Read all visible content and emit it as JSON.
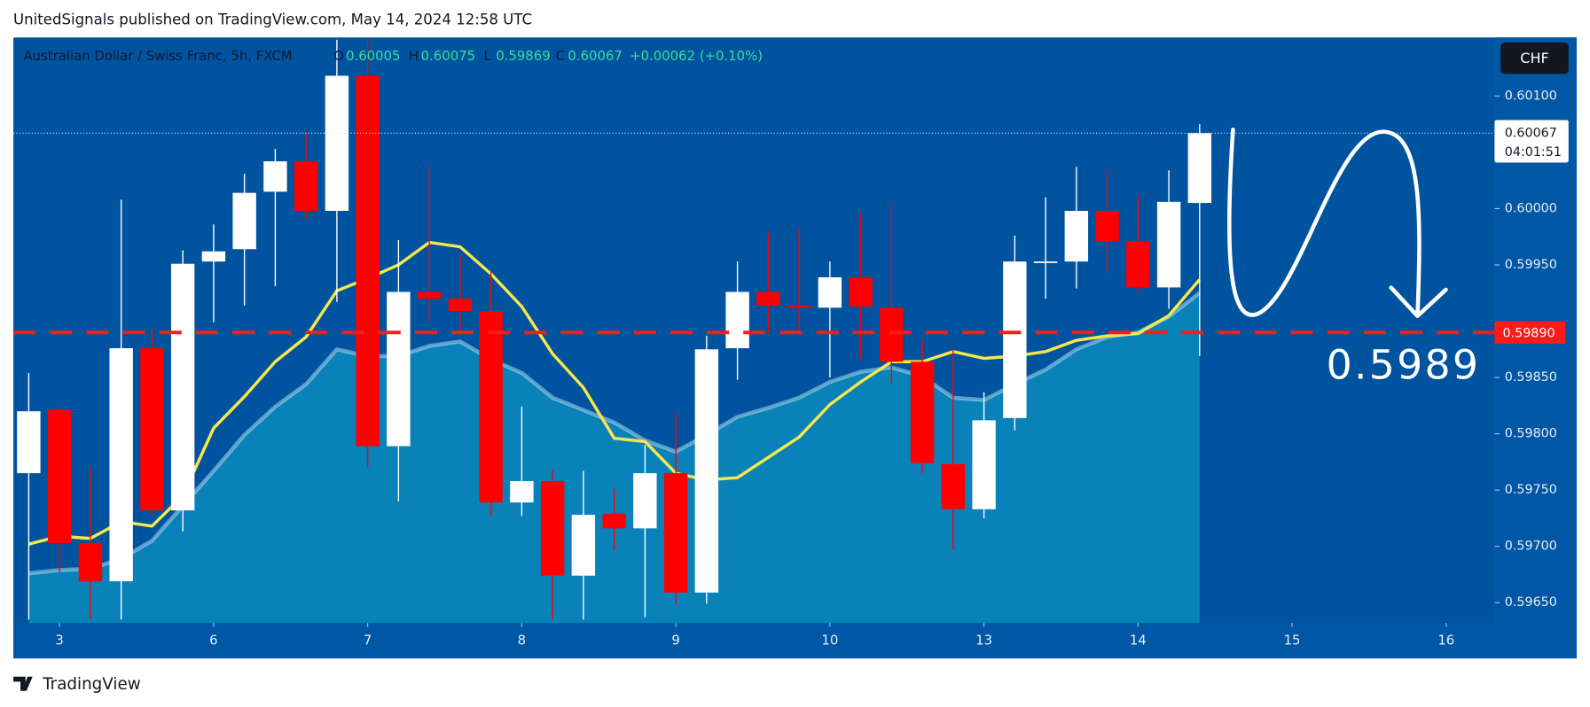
{
  "header": {
    "title": "UnitedSignals published on TradingView.com, May 14, 2024 12:58 UTC"
  },
  "footer": {
    "brand": "TradingView"
  },
  "currency_button": "CHF",
  "chart_data": {
    "type": "candlestick",
    "title": "Australian Dollar / Swiss Franc, 5h, FXCM",
    "legend_labels": [
      "O",
      "H",
      "L",
      "C"
    ],
    "change_label": "+0.00062 (+0.10%)",
    "countdown": "04:01:51",
    "annotation": "0.5989",
    "horizontal_line": {
      "value": 0.5989,
      "label": "0.59890",
      "color": "#ff1a1a"
    },
    "up_color": "#ffffff",
    "down_color": "#ff0000",
    "open": [
      0.59765,
      0.59821,
      0.59703,
      0.59669,
      0.59876,
      0.59732,
      0.59953,
      0.59964,
      0.60015,
      0.60042,
      0.59998,
      0.60118,
      0.59789,
      0.59926,
      0.5992,
      0.59909,
      0.59739,
      0.59758,
      0.59674,
      0.59729,
      0.59716,
      0.59765,
      0.59659,
      0.59876,
      0.59926,
      0.59914,
      0.59912,
      0.59939,
      0.59912,
      0.59864,
      0.59773,
      0.59733,
      0.59814,
      0.59952,
      0.59953,
      0.59998,
      0.59971,
      0.5993,
      0.60005
    ],
    "high": [
      0.59854,
      0.59824,
      0.5977,
      0.60008,
      0.59893,
      0.59963,
      0.59986,
      0.60031,
      0.60053,
      0.60067,
      0.6015,
      0.6015,
      0.59972,
      0.60039,
      0.59959,
      0.59944,
      0.59824,
      0.59768,
      0.59767,
      0.59751,
      0.5979,
      0.59819,
      0.59887,
      0.59953,
      0.59979,
      0.59982,
      0.59953,
      0.59996,
      0.60006,
      0.59884,
      0.59875,
      0.59837,
      0.59976,
      0.6001,
      0.60037,
      0.60034,
      0.60012,
      0.60034,
      0.60075
    ],
    "low": [
      0.59635,
      0.59677,
      0.59635,
      0.59635,
      0.59727,
      0.59713,
      0.59899,
      0.59914,
      0.59931,
      0.59991,
      0.59917,
      0.5977,
      0.5974,
      0.59899,
      0.59889,
      0.59727,
      0.59727,
      0.59635,
      0.59635,
      0.59697,
      0.59637,
      0.59649,
      0.59649,
      0.59848,
      0.59889,
      0.59889,
      0.5985,
      0.59866,
      0.59844,
      0.59765,
      0.59697,
      0.59725,
      0.59803,
      0.5992,
      0.59929,
      0.59943,
      0.59925,
      0.59911,
      0.59869
    ],
    "close": [
      0.5982,
      0.59703,
      0.59669,
      0.59876,
      0.59732,
      0.59951,
      0.59962,
      0.60014,
      0.60042,
      0.59998,
      0.60118,
      0.59789,
      0.59926,
      0.5992,
      0.59909,
      0.59739,
      0.59758,
      0.59674,
      0.59728,
      0.59716,
      0.59765,
      0.59659,
      0.59875,
      0.59926,
      0.59914,
      0.59912,
      0.59939,
      0.59913,
      0.59864,
      0.59774,
      0.59733,
      0.59812,
      0.59953,
      0.59953,
      0.59998,
      0.59971,
      0.5993,
      0.60006,
      0.60067
    ],
    "lines": [
      {
        "color": "#a9d8ec",
        "fill": "#0a86bb",
        "values": [
          0.59676,
          0.59679,
          0.5968,
          0.59689,
          0.59705,
          0.59736,
          0.59767,
          0.59799,
          0.59824,
          0.59844,
          0.59875,
          0.59869,
          0.59869,
          0.59878,
          0.59882,
          0.59866,
          0.59854,
          0.59832,
          0.59821,
          0.5981,
          0.59794,
          0.59784,
          0.59799,
          0.59815,
          0.59823,
          0.59832,
          0.59846,
          0.59855,
          0.59859,
          0.59851,
          0.59832,
          0.5983,
          0.59844,
          0.59857,
          0.59875,
          0.59886,
          0.5989,
          0.59904,
          0.59925
        ]
      },
      {
        "color": "#f7e84a",
        "values": [
          0.59702,
          0.59709,
          0.59707,
          0.59722,
          0.59718,
          0.59745,
          0.59805,
          0.59833,
          0.59864,
          0.59886,
          0.59927,
          0.59938,
          0.5995,
          0.5997,
          0.59966,
          0.59942,
          0.59913,
          0.59871,
          0.59841,
          0.59796,
          0.59793,
          0.59765,
          0.59759,
          0.59761,
          0.59779,
          0.59797,
          0.59826,
          0.59846,
          0.59864,
          0.59864,
          0.59873,
          0.59867,
          0.59869,
          0.59873,
          0.59883,
          0.59887,
          0.59889,
          0.59905,
          0.59937
        ]
      }
    ],
    "xlim": [
      -0.5,
      47.57
    ],
    "xticks": [
      {
        "value": 1,
        "label": "3"
      },
      {
        "value": 6,
        "label": "6"
      },
      {
        "value": 11,
        "label": "7"
      },
      {
        "value": 16,
        "label": "8"
      },
      {
        "value": 21,
        "label": "9"
      },
      {
        "value": 26,
        "label": "10"
      },
      {
        "value": 31,
        "label": "13"
      },
      {
        "value": 36,
        "label": "14"
      },
      {
        "value": 41,
        "label": "15"
      },
      {
        "value": 46,
        "label": "16"
      }
    ],
    "ylim": [
      0.59632,
      0.60152
    ],
    "yticks": [
      {
        "value": 0.5965,
        "label": "0.59650"
      },
      {
        "value": 0.597,
        "label": "0.59700"
      },
      {
        "value": 0.5975,
        "label": "0.59750"
      },
      {
        "value": 0.598,
        "label": "0.59800"
      },
      {
        "value": 0.5985,
        "label": "0.59850"
      },
      {
        "value": 0.5995,
        "label": "0.59950"
      },
      {
        "value": 0.6,
        "label": "0.60000"
      },
      {
        "value": 0.601,
        "label": "0.60100"
      }
    ]
  }
}
